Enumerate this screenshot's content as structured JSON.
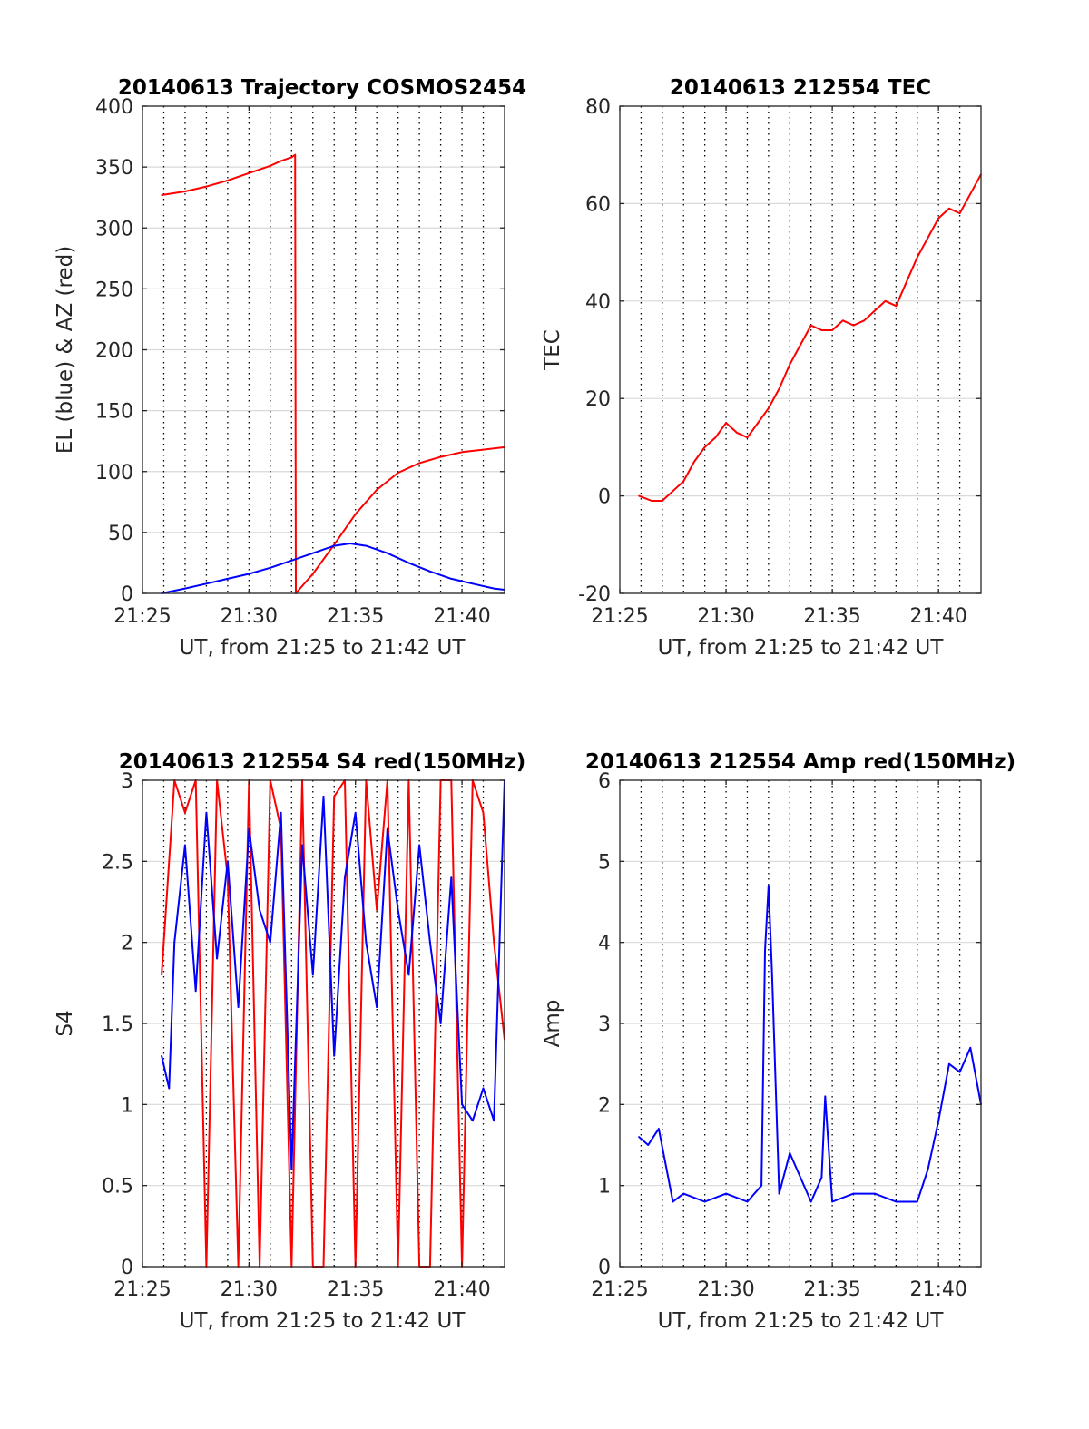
{
  "colors": {
    "az": "#ff0000",
    "el": "#0000ff",
    "tec": "#ff0000",
    "s4_red": "#ff0000",
    "s4_blue": "#0000ff",
    "amp": "#0000ff"
  },
  "chart_data": [
    {
      "type": "line",
      "title": "20140613 Trajectory COSMOS2454",
      "xlabel": "UT, from 21:25 to 21:42 UT",
      "ylabel": "EL (blue) & AZ (red)",
      "xlim": [
        "21:25",
        "21:42"
      ],
      "ylim": [
        0,
        400
      ],
      "x_ticks": [
        "21:25",
        "21:30",
        "21:35",
        "21:40"
      ],
      "y_ticks": [
        0,
        50,
        100,
        150,
        200,
        250,
        300,
        350,
        400
      ],
      "grid": true,
      "series": [
        {
          "name": "AZ",
          "color": "#ff0000",
          "x": [
            "21:25:54",
            "21:27:00",
            "21:28:00",
            "21:29:00",
            "21:30:00",
            "21:31:00",
            "21:31:30",
            "21:32:00",
            "21:32:10",
            "21:32:12",
            "21:32:30",
            "21:33:00",
            "21:34:00",
            "21:35:00",
            "21:36:00",
            "21:37:00",
            "21:38:00",
            "21:39:00",
            "21:40:00",
            "21:41:00",
            "21:42:00"
          ],
          "y": [
            327,
            330,
            334,
            339,
            345,
            351,
            355,
            358,
            360,
            0,
            6,
            16,
            40,
            65,
            85,
            99,
            107,
            112,
            116,
            118,
            120
          ]
        },
        {
          "name": "EL",
          "color": "#0000ff",
          "x": [
            "21:25:54",
            "21:27:00",
            "21:28:00",
            "21:29:00",
            "21:30:00",
            "21:31:00",
            "21:32:00",
            "21:33:00",
            "21:34:00",
            "21:34:45",
            "21:35:30",
            "21:36:30",
            "21:37:30",
            "21:38:30",
            "21:39:30",
            "21:40:30",
            "21:41:30",
            "21:42:00"
          ],
          "y": [
            0,
            4,
            8,
            12,
            16,
            21,
            27,
            33,
            39,
            41,
            39,
            33,
            25,
            18,
            12,
            8,
            4,
            3
          ]
        }
      ]
    },
    {
      "type": "line",
      "title": "20140613 212554 TEC",
      "xlabel": "UT, from 21:25 to 21:42 UT",
      "ylabel": "TEC",
      "xlim": [
        "21:25",
        "21:42"
      ],
      "ylim": [
        -20,
        80
      ],
      "x_ticks": [
        "21:25",
        "21:30",
        "21:35",
        "21:40"
      ],
      "y_ticks": [
        -20,
        0,
        20,
        40,
        60,
        80
      ],
      "grid": true,
      "series": [
        {
          "name": "TEC",
          "color": "#ff0000",
          "x": [
            "21:25:54",
            "21:26:30",
            "21:27:00",
            "21:27:30",
            "21:28:00",
            "21:28:30",
            "21:29:00",
            "21:29:30",
            "21:30:00",
            "21:30:30",
            "21:31:00",
            "21:31:30",
            "21:32:00",
            "21:32:30",
            "21:33:00",
            "21:33:30",
            "21:34:00",
            "21:34:30",
            "21:35:00",
            "21:35:30",
            "21:36:00",
            "21:36:30",
            "21:37:00",
            "21:37:30",
            "21:38:00",
            "21:38:30",
            "21:39:00",
            "21:39:30",
            "21:40:00",
            "21:40:30",
            "21:41:00",
            "21:41:30",
            "21:42:00"
          ],
          "y": [
            0,
            -1,
            -1,
            1,
            3,
            7,
            10,
            12,
            15,
            13,
            12,
            15,
            18,
            22,
            27,
            31,
            35,
            34,
            34,
            36,
            35,
            36,
            38,
            40,
            39,
            44,
            49,
            53,
            57,
            59,
            58,
            62,
            66
          ]
        }
      ]
    },
    {
      "type": "line",
      "title": "20140613 212554 S4 red(150MHz)",
      "xlabel": "UT, from 21:25 to 21:42 UT",
      "ylabel": "S4",
      "xlim": [
        "21:25",
        "21:42"
      ],
      "ylim": [
        0,
        3
      ],
      "x_ticks": [
        "21:25",
        "21:30",
        "21:35",
        "21:40"
      ],
      "y_ticks": [
        0,
        0.5,
        1,
        1.5,
        2,
        2.5,
        3
      ],
      "grid": true,
      "series": [
        {
          "name": "S4 red",
          "color": "#ff0000",
          "x": [
            "21:25:54",
            "21:26:30",
            "21:27:00",
            "21:27:30",
            "21:28:00",
            "21:28:30",
            "21:29:00",
            "21:29:30",
            "21:30:00",
            "21:30:30",
            "21:31:00",
            "21:31:30",
            "21:32:00",
            "21:32:30",
            "21:33:00",
            "21:33:30",
            "21:34:00",
            "21:34:30",
            "21:35:00",
            "21:35:30",
            "21:36:00",
            "21:36:30",
            "21:37:00",
            "21:37:30",
            "21:38:00",
            "21:38:30",
            "21:39:00",
            "21:39:30",
            "21:40:00",
            "21:40:30",
            "21:41:00",
            "21:41:30",
            "21:42:00"
          ],
          "y": [
            1.8,
            3,
            2.8,
            3,
            0,
            3,
            2.4,
            0,
            3,
            0,
            3,
            2.7,
            0,
            3,
            0,
            0,
            2.9,
            3,
            0,
            3,
            2.2,
            3,
            0,
            3,
            0,
            0,
            3,
            3,
            0,
            3,
            2.8,
            2.0,
            1.4
          ]
        },
        {
          "name": "S4 blue",
          "color": "#0000ff",
          "x": [
            "21:25:54",
            "21:26:15",
            "21:26:30",
            "21:27:00",
            "21:27:30",
            "21:28:00",
            "21:28:30",
            "21:29:00",
            "21:29:30",
            "21:30:00",
            "21:30:30",
            "21:31:00",
            "21:31:30",
            "21:32:00",
            "21:32:30",
            "21:33:00",
            "21:33:30",
            "21:34:00",
            "21:34:30",
            "21:35:00",
            "21:35:30",
            "21:36:00",
            "21:36:30",
            "21:37:00",
            "21:37:30",
            "21:38:00",
            "21:38:30",
            "21:39:00",
            "21:39:30",
            "21:40:00",
            "21:40:30",
            "21:41:00",
            "21:41:30",
            "21:42:00"
          ],
          "y": [
            1.3,
            1.1,
            2.0,
            2.6,
            1.7,
            2.8,
            1.9,
            2.5,
            1.6,
            2.7,
            2.2,
            2.0,
            2.8,
            0.6,
            2.6,
            1.8,
            2.9,
            1.3,
            2.4,
            2.8,
            2.0,
            1.6,
            2.7,
            2.2,
            1.8,
            2.6,
            2.0,
            1.5,
            2.4,
            1.0,
            0.9,
            1.1,
            0.9,
            3.0
          ]
        }
      ]
    },
    {
      "type": "line",
      "title": "20140613 212554 Amp red(150MHz)",
      "xlabel": "UT, from 21:25 to 21:42 UT",
      "ylabel": "Amp",
      "xlim": [
        "21:25",
        "21:42"
      ],
      "ylim": [
        0,
        6
      ],
      "x_ticks": [
        "21:25",
        "21:30",
        "21:35",
        "21:40"
      ],
      "y_ticks": [
        0,
        1,
        2,
        3,
        4,
        5,
        6
      ],
      "grid": true,
      "series": [
        {
          "name": "Amp",
          "color": "#0000ff",
          "x": [
            "21:25:54",
            "21:26:20",
            "21:26:50",
            "21:27:30",
            "21:28:00",
            "21:29:00",
            "21:30:00",
            "21:31:00",
            "21:31:40",
            "21:31:50",
            "21:32:00",
            "21:32:10",
            "21:32:30",
            "21:33:00",
            "21:34:00",
            "21:34:30",
            "21:34:40",
            "21:35:00",
            "21:36:00",
            "21:37:00",
            "21:38:00",
            "21:39:00",
            "21:39:30",
            "21:40:00",
            "21:40:30",
            "21:41:00",
            "21:41:30",
            "21:42:00"
          ],
          "y": [
            1.6,
            1.5,
            1.7,
            0.8,
            0.9,
            0.8,
            0.9,
            0.8,
            1.0,
            3.9,
            4.7,
            3.6,
            0.9,
            1.4,
            0.8,
            1.1,
            2.1,
            0.8,
            0.9,
            0.9,
            0.8,
            0.8,
            1.2,
            1.8,
            2.5,
            2.4,
            2.7,
            2.0
          ]
        }
      ]
    }
  ]
}
